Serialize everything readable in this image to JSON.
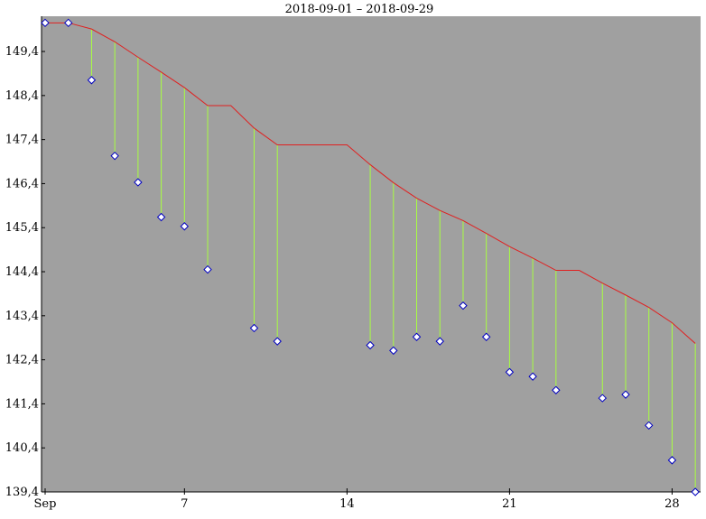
{
  "chart_data": {
    "type": "line",
    "title": "2018-09-01 – 2018-09-29",
    "x": [
      "2018-09-01",
      "2018-09-02",
      "2018-09-03",
      "2018-09-04",
      "2018-09-05",
      "2018-09-06",
      "2018-09-07",
      "2018-09-08",
      "2018-09-09",
      "2018-09-10",
      "2018-09-11",
      "2018-09-12",
      "2018-09-13",
      "2018-09-14",
      "2018-09-15",
      "2018-09-16",
      "2018-09-17",
      "2018-09-18",
      "2018-09-19",
      "2018-09-20",
      "2018-09-21",
      "2018-09-22",
      "2018-09-23",
      "2018-09-24",
      "2018-09-25",
      "2018-09-26",
      "2018-09-27",
      "2018-09-28",
      "2018-09-29"
    ],
    "series": [
      {
        "color": "#e02020",
        "values": [
          150.05,
          150.05,
          149.91,
          149.62,
          149.27,
          148.93,
          148.58,
          148.17,
          148.17,
          147.66,
          147.28,
          147.28,
          147.28,
          147.28,
          146.83,
          146.42,
          146.07,
          145.79,
          145.56,
          145.27,
          144.97,
          144.71,
          144.43,
          144.43,
          144.14,
          143.87,
          143.59,
          143.24,
          142.77
        ]
      },
      {
        "color": "#0000c0",
        "values": [
          150.05,
          150.05,
          148.75,
          147.03,
          146.43,
          145.64,
          145.43,
          144.45,
          null,
          143.12,
          142.82,
          null,
          null,
          null,
          142.73,
          142.61,
          142.92,
          142.82,
          143.63,
          142.92,
          142.12,
          142.02,
          141.71,
          null,
          141.53,
          141.61,
          140.91,
          140.12,
          139.4
        ]
      }
    ],
    "drop_line_color": "#a8ff40",
    "background": "#a0a0a0",
    "ylim": [
      139.4,
      150.2
    ],
    "yticks": [
      {
        "value": 139.4,
        "label": "139,4"
      },
      {
        "value": 140.4,
        "label": "140,4"
      },
      {
        "value": 141.4,
        "label": "141,4"
      },
      {
        "value": 142.4,
        "label": "142,4"
      },
      {
        "value": 143.4,
        "label": "143,4"
      },
      {
        "value": 144.4,
        "label": "144,4"
      },
      {
        "value": 145.4,
        "label": "145,4"
      },
      {
        "value": 146.4,
        "label": "146,4"
      },
      {
        "value": 147.4,
        "label": "147,4"
      },
      {
        "value": 148.4,
        "label": "148,4"
      },
      {
        "value": 149.4,
        "label": "149,4"
      }
    ],
    "xticks": [
      {
        "value": "2018-09-01",
        "label": "Sep"
      },
      {
        "value": "2018-09-07",
        "label": "7"
      },
      {
        "value": "2018-09-14",
        "label": "14"
      },
      {
        "value": "2018-09-21",
        "label": "21"
      },
      {
        "value": "2018-09-28",
        "label": "28"
      }
    ]
  }
}
